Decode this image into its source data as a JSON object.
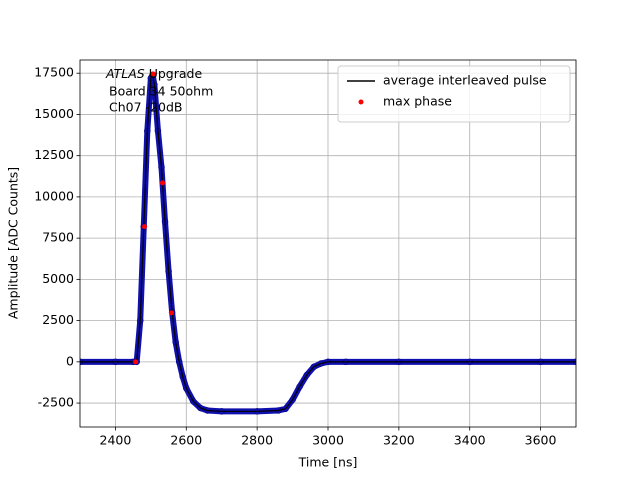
{
  "chart_data": {
    "type": "line",
    "xlabel": "Time [ns]",
    "ylabel": "Amplitude [ADC Counts]",
    "annotation": {
      "italic": "ATLAS",
      "rest": " Upgrade",
      "lines": [
        "Board 34 50ohm",
        "Ch07 -20dB"
      ]
    },
    "xlim": [
      2300,
      3700
    ],
    "ylim": [
      -3950,
      18300
    ],
    "xticks": [
      2400,
      2600,
      2800,
      3000,
      3200,
      3400,
      3600
    ],
    "yticks": [
      -2500,
      0,
      2500,
      5000,
      7500,
      10000,
      12500,
      15000,
      17500
    ],
    "grid": true,
    "legend": "upper right",
    "series": [
      {
        "color": "#1010b0",
        "marker": "dot",
        "x": [
          2300,
          2400,
          2450,
          2460,
          2470,
          2480,
          2490,
          2500,
          2505,
          2510,
          2520,
          2530,
          2540,
          2550,
          2560,
          2570,
          2580,
          2590,
          2600,
          2620,
          2640,
          2660,
          2700,
          2800,
          2860,
          2880,
          2900,
          2920,
          2940,
          2960,
          2980,
          3000,
          3050,
          3200,
          3400,
          3600,
          3700
        ],
        "values": [
          0,
          0,
          0,
          0,
          2500,
          8200,
          14000,
          17200,
          17400,
          16800,
          14000,
          11800,
          8500,
          5500,
          3000,
          1200,
          0,
          -900,
          -1600,
          -2400,
          -2800,
          -2950,
          -3000,
          -3000,
          -2950,
          -2850,
          -2300,
          -1500,
          -800,
          -300,
          -100,
          0,
          0,
          0,
          0,
          0,
          0
        ]
      },
      {
        "name": "average interleaved pulse",
        "color": "#000000",
        "marker": "line",
        "x": [
          2300,
          2400,
          2450,
          2460,
          2470,
          2480,
          2490,
          2500,
          2505,
          2510,
          2520,
          2530,
          2540,
          2550,
          2560,
          2570,
          2580,
          2590,
          2600,
          2620,
          2640,
          2660,
          2700,
          2800,
          2860,
          2880,
          2900,
          2920,
          2940,
          2960,
          2980,
          3000,
          3050,
          3200,
          3400,
          3600,
          3700
        ],
        "values": [
          0,
          0,
          0,
          0,
          2500,
          8200,
          14000,
          17200,
          17400,
          16800,
          14000,
          11800,
          8500,
          5500,
          3000,
          1200,
          0,
          -900,
          -1600,
          -2400,
          -2800,
          -2950,
          -3000,
          -3000,
          -2950,
          -2850,
          -2300,
          -1500,
          -800,
          -300,
          -100,
          0,
          0,
          0,
          0,
          0,
          0
        ]
      },
      {
        "name": "max phase",
        "color": "#ff0000",
        "marker": "point",
        "x": [
          2457,
          2482,
          2507,
          2533,
          2558
        ],
        "values": [
          0,
          8200,
          17450,
          10850,
          2970
        ]
      }
    ]
  }
}
